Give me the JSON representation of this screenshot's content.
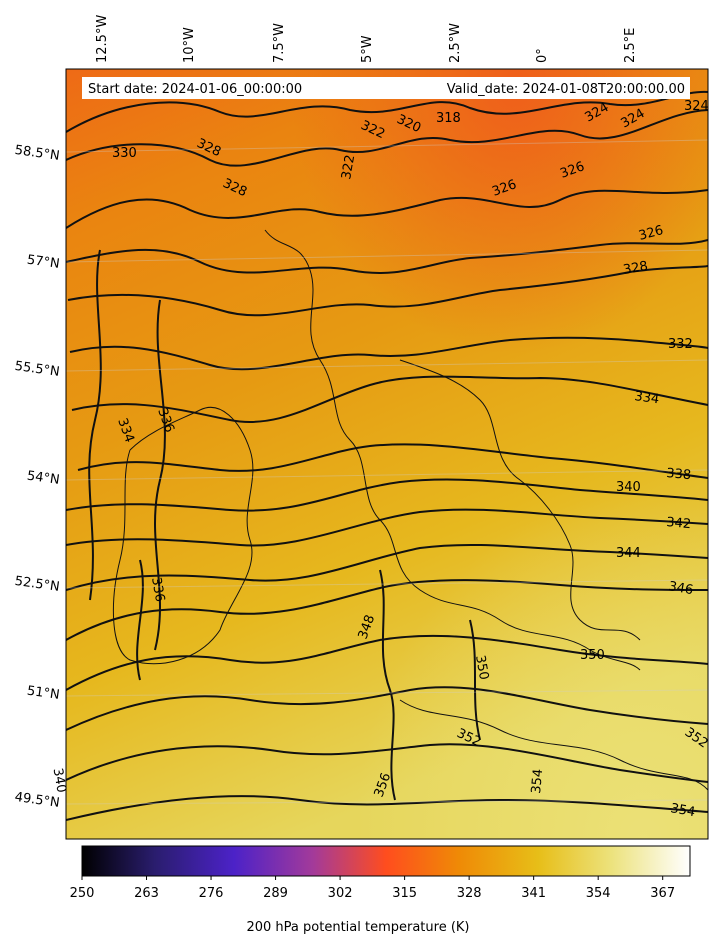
{
  "info": {
    "start": "Start date: 2024-01-06_00:00:00",
    "valid": "Valid_date: 2024-01-08T20:00:00.00"
  },
  "lon_labels": [
    "12.5°W",
    "10°W",
    "7.5°W",
    "5°W",
    "2.5°W",
    "0°",
    "2.5°E"
  ],
  "lat_labels": [
    "58.5°N",
    "57°N",
    "55.5°N",
    "54°N",
    "52.5°N",
    "51°N",
    "49.5°N"
  ],
  "contour_labels": [
    "330",
    "328",
    "328",
    "322",
    "320",
    "318",
    "324",
    "324",
    "324",
    "322",
    "326",
    "326",
    "326",
    "328",
    "332",
    "334",
    "336",
    "334",
    "338",
    "340",
    "342",
    "344",
    "346",
    "336",
    "348",
    "350",
    "350",
    "352",
    "352",
    "354",
    "354",
    "356",
    "340"
  ],
  "colorbar": {
    "ticks": [
      "250",
      "263",
      "276",
      "289",
      "302",
      "315",
      "328",
      "341",
      "354",
      "367"
    ],
    "title": "200 hPa potential temperature (K)",
    "stops": [
      "#000000",
      "#2a1d6e",
      "#4c22c8",
      "#a33a9a",
      "#ff4d1e",
      "#ef8a06",
      "#e7be18",
      "#ece27c",
      "#ffffff"
    ]
  }
}
